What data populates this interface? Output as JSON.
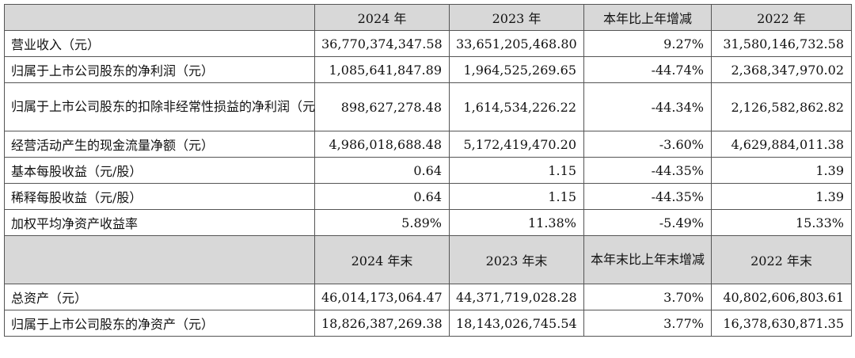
{
  "header": {
    "row1": [
      "2024 年",
      "2023 年",
      "本年比上年增减",
      "2022 年"
    ],
    "row2": [
      "2024 年末",
      "2023 年末",
      "本年末比上年末增减",
      "2022 年末"
    ]
  },
  "rows": [
    {
      "label": "营业收入（元）",
      "values": [
        "36,770,374,347.58",
        "33,651,205,468.80",
        "9.27%",
        "31,580,146,732.58"
      ]
    },
    {
      "label": "归属于上市公司股东的净利润（元）",
      "values": [
        "1,085,641,847.89",
        "1,964,525,269.65",
        "-44.74%",
        "2,368,347,970.02"
      ]
    },
    {
      "label": "归属于上市公司股东的扣除非经常性损益的净利润（元）",
      "values": [
        "898,627,278.48",
        "1,614,534,226.22",
        "-44.34%",
        "2,126,582,862.82"
      ]
    },
    {
      "label": "经营活动产生的现金流量净额（元）",
      "values": [
        "4,986,018,688.48",
        "5,172,419,470.20",
        "-3.60%",
        "4,629,884,011.38"
      ]
    },
    {
      "label": "基本每股收益（元/股）",
      "values": [
        "0.64",
        "1.15",
        "-44.35%",
        "1.39"
      ]
    },
    {
      "label": "稀释每股收益（元/股）",
      "values": [
        "0.64",
        "1.15",
        "-44.35%",
        "1.39"
      ]
    },
    {
      "label": "加权平均净资产收益率",
      "values": [
        "5.89%",
        "11.38%",
        "-5.49%",
        "15.33%"
      ]
    }
  ],
  "rows2": [
    {
      "label": "总资产（元）",
      "values": [
        "46,014,173,064.47",
        "44,371,719,028.28",
        "3.70%",
        "40,802,606,803.61"
      ]
    },
    {
      "label": "归属于上市公司股东的净资产（元）",
      "values": [
        "18,826,387,269.38",
        "18,143,026,745.54",
        "3.77%",
        "16,378,630,871.35"
      ]
    }
  ]
}
